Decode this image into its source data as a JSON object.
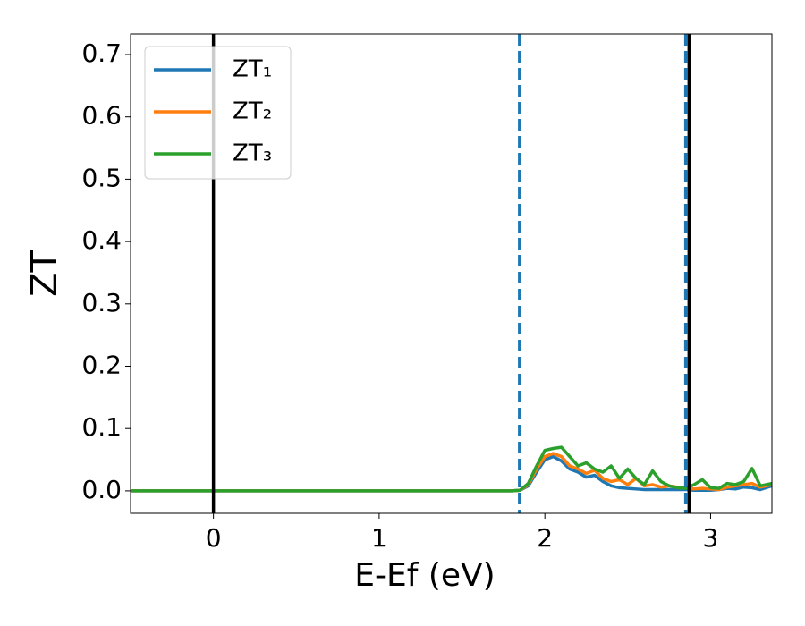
{
  "chart_data": {
    "type": "line",
    "xlabel": "E-Ef (eV)",
    "ylabel": "ZT",
    "xlim": [
      -0.5,
      3.37
    ],
    "ylim": [
      -0.036,
      0.733
    ],
    "xticks": [
      0,
      1,
      2,
      3
    ],
    "yticks": [
      {
        "value": 0,
        "label": "0.0"
      },
      0.1,
      0.2,
      0.3,
      0.4,
      0.5,
      0.6,
      0.7
    ],
    "legend": "upper left",
    "x": [
      -0.5,
      1.7,
      1.8,
      1.85,
      1.9,
      1.95,
      2.0,
      2.05,
      2.1,
      2.15,
      2.2,
      2.25,
      2.3,
      2.35,
      2.4,
      2.45,
      2.5,
      2.55,
      2.6,
      2.65,
      2.7,
      2.75,
      2.8,
      2.85,
      2.9,
      2.95,
      3.0,
      3.05,
      3.1,
      3.15,
      3.2,
      3.25,
      3.3,
      3.37
    ],
    "series": [
      {
        "name": "ZT₁",
        "color": "#1f77b4",
        "values": [
          0,
          0,
          0,
          0.001,
          0.008,
          0.03,
          0.05,
          0.055,
          0.048,
          0.035,
          0.03,
          0.022,
          0.025,
          0.015,
          0.008,
          0.005,
          0.004,
          0.003,
          0.002,
          0.002,
          0.002,
          0.002,
          0.002,
          0.002,
          0.001,
          0.001,
          0.001,
          0.002,
          0.004,
          0.003,
          0.006,
          0.005,
          0.002,
          0.008
        ]
      },
      {
        "name": "ZT₂",
        "color": "#ff7f0e",
        "values": [
          0,
          0,
          0,
          0.001,
          0.01,
          0.035,
          0.055,
          0.06,
          0.055,
          0.04,
          0.035,
          0.028,
          0.033,
          0.02,
          0.015,
          0.018,
          0.01,
          0.02,
          0.008,
          0.01,
          0.006,
          0.008,
          0.006,
          0.005,
          0.003,
          0.004,
          0.003,
          0.002,
          0.006,
          0.008,
          0.01,
          0.012,
          0.006,
          0.01
        ]
      },
      {
        "name": "ZT₃",
        "color": "#2ca02c",
        "values": [
          0,
          0,
          0,
          0.001,
          0.012,
          0.04,
          0.065,
          0.068,
          0.07,
          0.055,
          0.04,
          0.045,
          0.035,
          0.03,
          0.04,
          0.02,
          0.035,
          0.02,
          0.01,
          0.032,
          0.015,
          0.008,
          0.005,
          0.004,
          0.01,
          0.018,
          0.005,
          0.004,
          0.012,
          0.01,
          0.015,
          0.036,
          0.008,
          0.012
        ]
      }
    ],
    "vlines": [
      {
        "x": 0,
        "color": "#000000",
        "style": "solid"
      },
      {
        "x": 1.847,
        "color": "#1f77b4",
        "style": "dashed"
      },
      {
        "x": 2.85,
        "color": "#1f77b4",
        "style": "dashed"
      },
      {
        "x": 2.87,
        "color": "#000000",
        "style": "solid"
      }
    ]
  }
}
